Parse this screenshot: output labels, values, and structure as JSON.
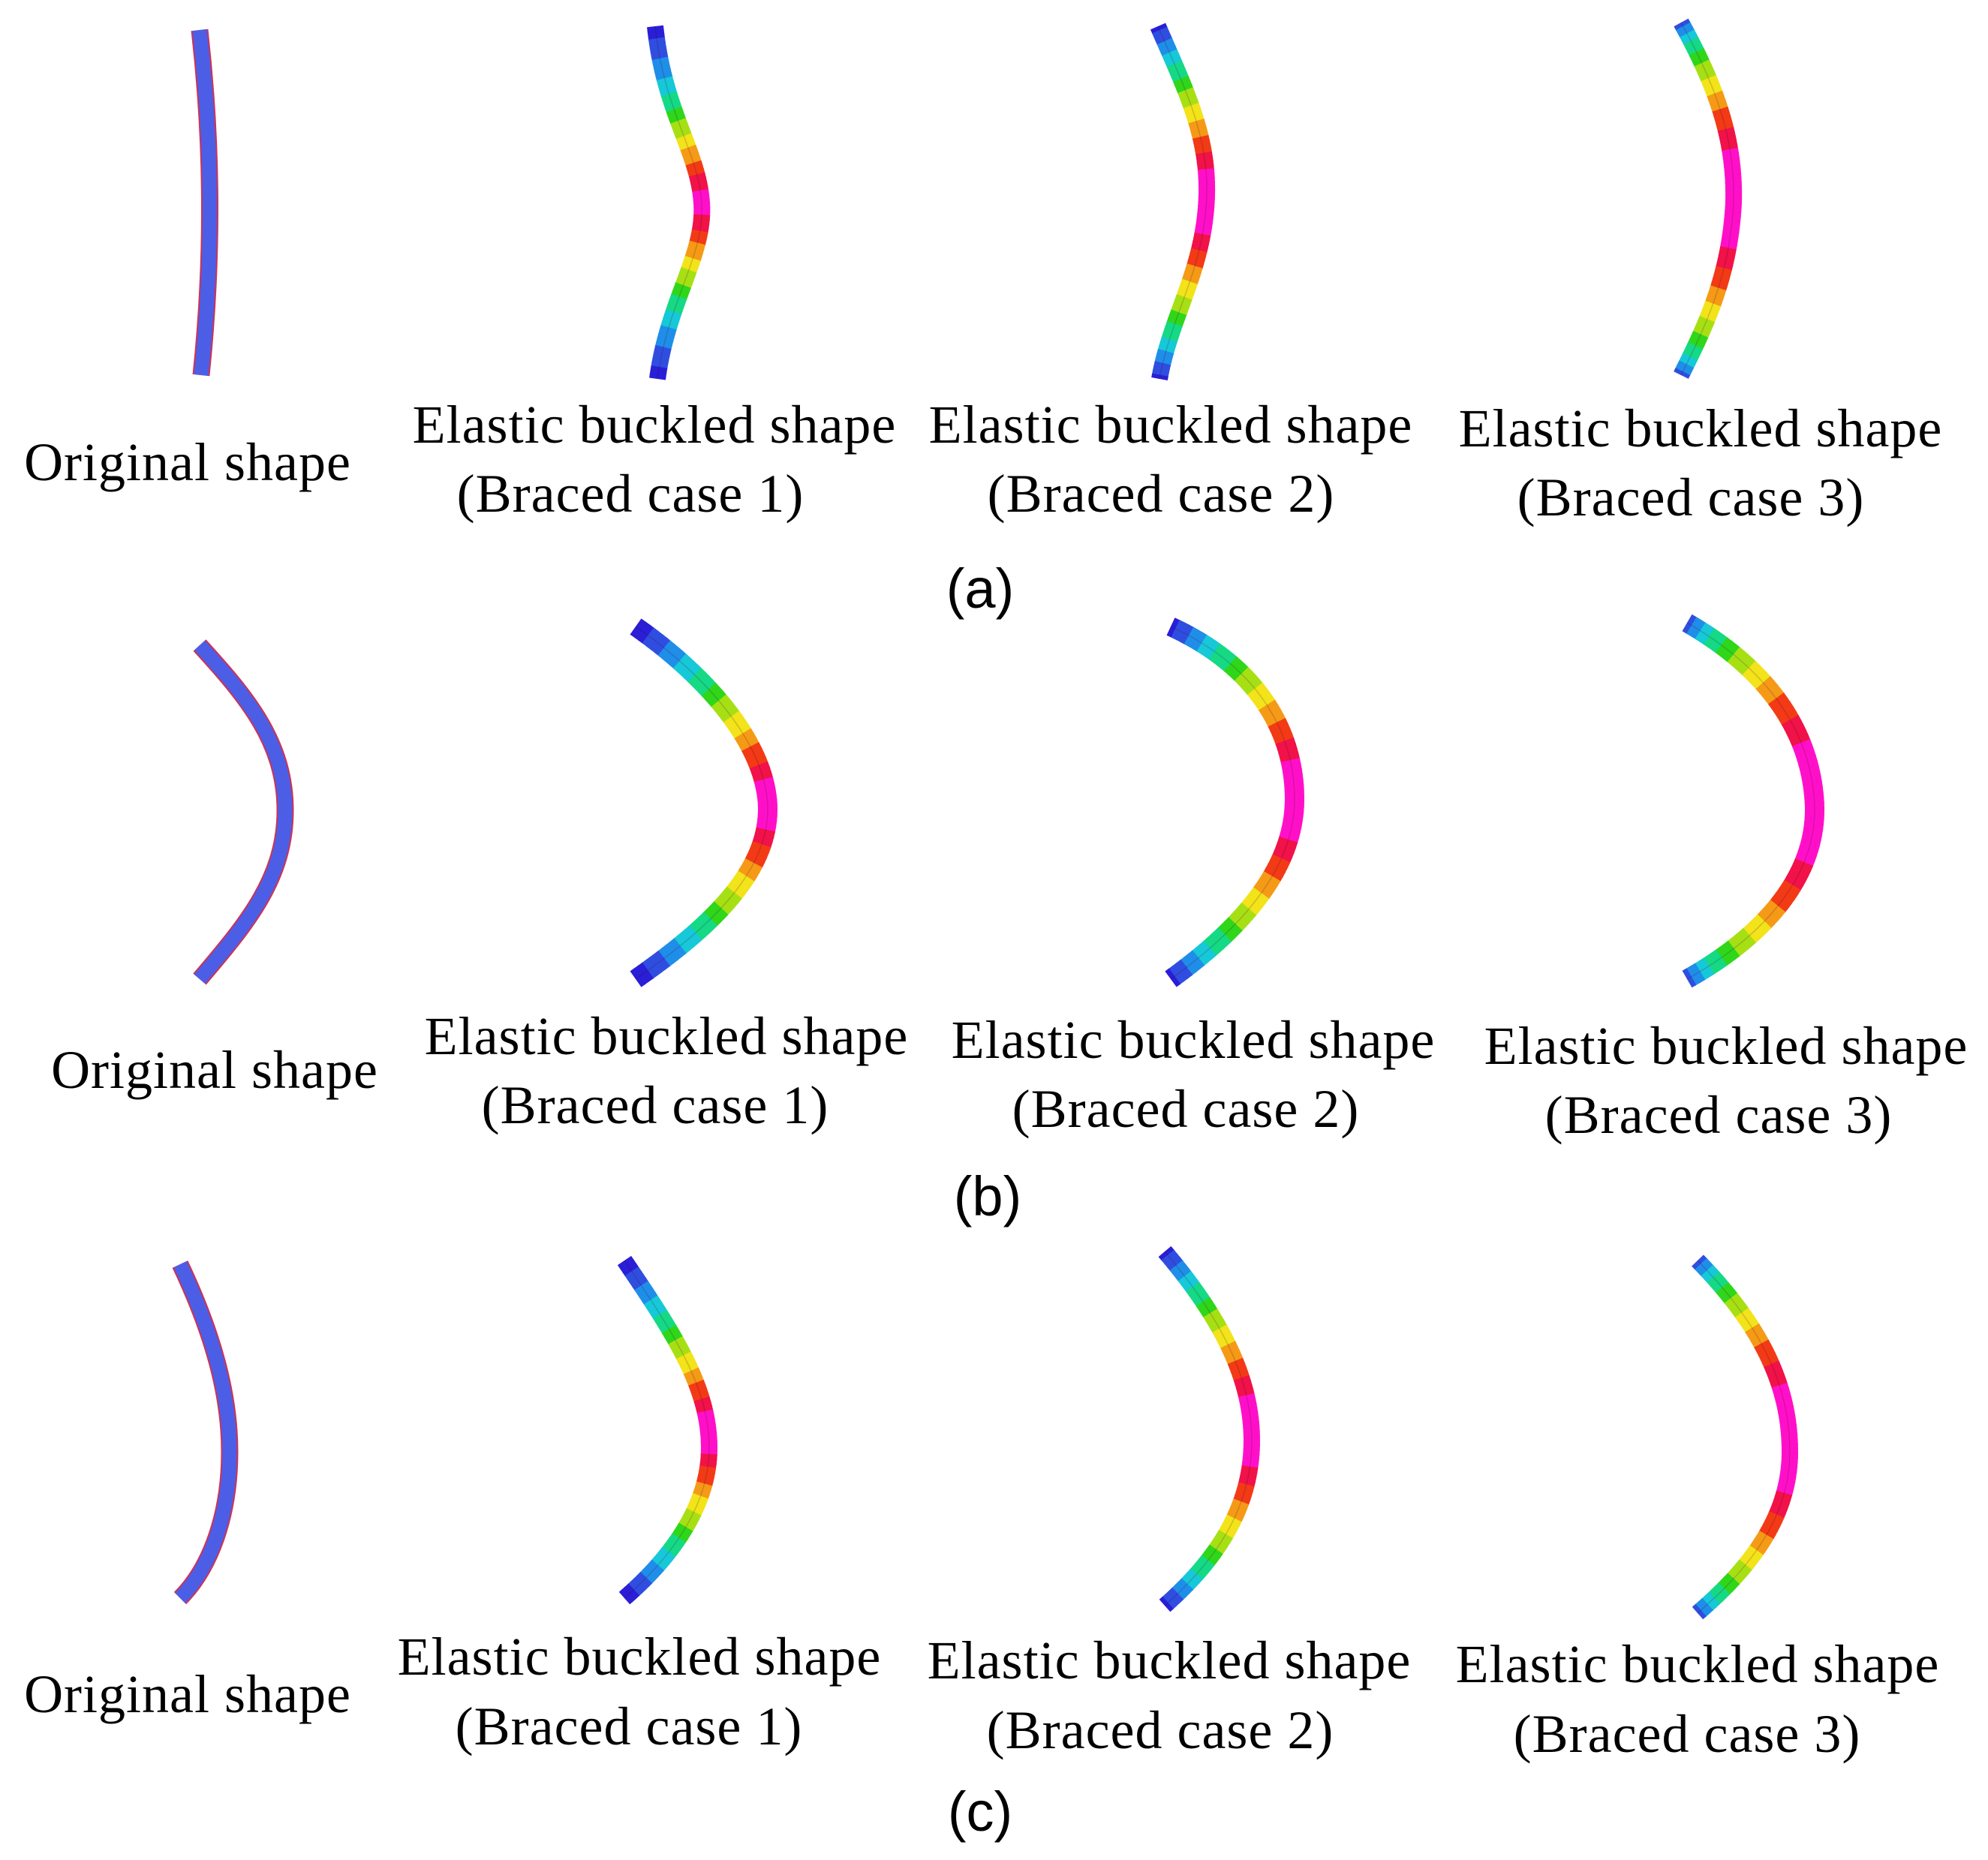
{
  "colors": {
    "background": "#ffffff",
    "original_fill": "#4d5ee6",
    "original_edge": "#cc3355",
    "contour_scale": [
      "#2a1ed6",
      "#2f4ee0",
      "#1f8ee8",
      "#16c8d8",
      "#15d985",
      "#2fd61a",
      "#a6e014",
      "#f2e31a",
      "#f59a16",
      "#f23a16",
      "#f01248",
      "#ff10c8"
    ]
  },
  "panels": [
    {
      "id": "a",
      "label": "(a)",
      "items": [
        {
          "kind": "original",
          "line1": "Original shape",
          "line2": ""
        },
        {
          "kind": "buckled",
          "line1": "Elastic buckled shape",
          "line2": "(Braced case 1)"
        },
        {
          "kind": "buckled",
          "line1": "Elastic buckled shape",
          "line2": "(Braced case 2)"
        },
        {
          "kind": "buckled",
          "line1": "Elastic buckled shape",
          "line2": "(Braced case 3)"
        }
      ]
    },
    {
      "id": "b",
      "label": "(b)",
      "items": [
        {
          "kind": "original",
          "line1": "Original shape",
          "line2": ""
        },
        {
          "kind": "buckled",
          "line1": "Elastic buckled shape",
          "line2": "(Braced case 1)"
        },
        {
          "kind": "buckled",
          "line1": "Elastic buckled shape",
          "line2": "(Braced case 2)"
        },
        {
          "kind": "buckled",
          "line1": "Elastic buckled shape",
          "line2": "(Braced case 3)"
        }
      ]
    },
    {
      "id": "c",
      "label": "(c)",
      "items": [
        {
          "kind": "original",
          "line1": "Original shape",
          "line2": ""
        },
        {
          "kind": "buckled",
          "line1": "Elastic buckled shape",
          "line2": "(Braced case 1)"
        },
        {
          "kind": "buckled",
          "line1": "Elastic buckled shape",
          "line2": "(Braced case 2)"
        },
        {
          "kind": "buckled",
          "line1": "Elastic buckled shape",
          "line2": "(Braced case 3)"
        }
      ]
    }
  ]
}
